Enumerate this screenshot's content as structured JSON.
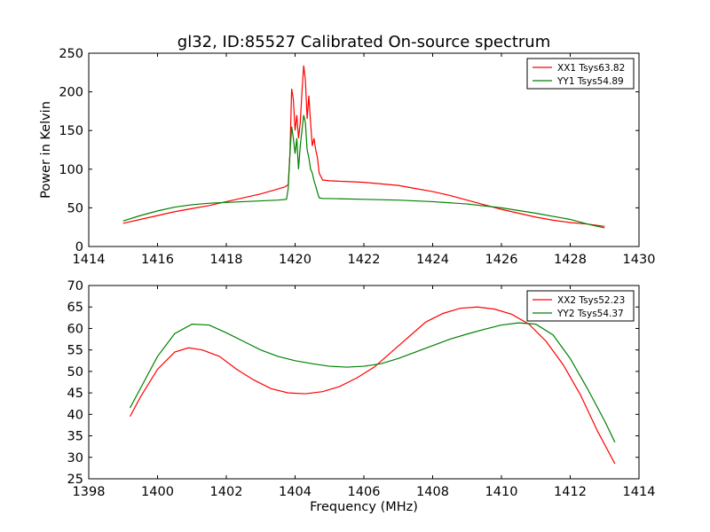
{
  "title": "gl32, ID:85527 Calibrated On-source spectrum",
  "chart_data": [
    {
      "type": "line",
      "title": "gl32, ID:85527 Calibrated On-source spectrum",
      "xlabel": "",
      "ylabel": "Power in Kelvin",
      "xlim": [
        1414,
        1430
      ],
      "ylim": [
        0,
        250
      ],
      "xticks": [
        "1414",
        "1416",
        "1418",
        "1420",
        "1422",
        "1424",
        "1426",
        "1428",
        "1430"
      ],
      "yticks": [
        "0",
        "50",
        "100",
        "150",
        "200",
        "250"
      ],
      "grid": false,
      "legend_position": "top-right",
      "series": [
        {
          "name": "XX1 Tsys63.82",
          "color": "#ff0000",
          "points": [
            [
              1415.0,
              30
            ],
            [
              1415.5,
              35
            ],
            [
              1416.0,
              40
            ],
            [
              1416.5,
              45
            ],
            [
              1417.0,
              49
            ],
            [
              1417.5,
              53
            ],
            [
              1418.0,
              58
            ],
            [
              1418.5,
              63
            ],
            [
              1419.0,
              68
            ],
            [
              1419.4,
              73
            ],
            [
              1419.7,
              77
            ],
            [
              1419.8,
              80
            ],
            [
              1419.85,
              120
            ],
            [
              1419.9,
              204
            ],
            [
              1419.95,
              190
            ],
            [
              1420.0,
              150
            ],
            [
              1420.05,
              170
            ],
            [
              1420.1,
              140
            ],
            [
              1420.15,
              160
            ],
            [
              1420.2,
              200
            ],
            [
              1420.25,
              234
            ],
            [
              1420.3,
              215
            ],
            [
              1420.35,
              165
            ],
            [
              1420.4,
              195
            ],
            [
              1420.45,
              160
            ],
            [
              1420.5,
              130
            ],
            [
              1420.55,
              140
            ],
            [
              1420.6,
              125
            ],
            [
              1420.65,
              115
            ],
            [
              1420.7,
              95
            ],
            [
              1420.8,
              86
            ],
            [
              1421.0,
              85
            ],
            [
              1421.5,
              84
            ],
            [
              1422.0,
              83
            ],
            [
              1422.5,
              81
            ],
            [
              1423.0,
              79
            ],
            [
              1423.5,
              75
            ],
            [
              1424.0,
              71
            ],
            [
              1424.5,
              66
            ],
            [
              1425.0,
              60
            ],
            [
              1425.5,
              54
            ],
            [
              1426.0,
              48
            ],
            [
              1426.5,
              43
            ],
            [
              1427.0,
              38
            ],
            [
              1427.5,
              34
            ],
            [
              1428.0,
              31
            ],
            [
              1428.5,
              29
            ],
            [
              1429.0,
              26
            ]
          ]
        },
        {
          "name": "YY1 Tsys54.89",
          "color": "#008000",
          "points": [
            [
              1415.0,
              33
            ],
            [
              1415.5,
              40
            ],
            [
              1416.0,
              46
            ],
            [
              1416.5,
              51
            ],
            [
              1417.0,
              54
            ],
            [
              1417.5,
              56
            ],
            [
              1418.0,
              57
            ],
            [
              1418.5,
              58
            ],
            [
              1419.0,
              59
            ],
            [
              1419.5,
              60
            ],
            [
              1419.75,
              61
            ],
            [
              1419.8,
              75
            ],
            [
              1419.85,
              120
            ],
            [
              1419.9,
              155
            ],
            [
              1419.95,
              140
            ],
            [
              1420.0,
              120
            ],
            [
              1420.05,
              140
            ],
            [
              1420.1,
              100
            ],
            [
              1420.15,
              130
            ],
            [
              1420.2,
              150
            ],
            [
              1420.25,
              170
            ],
            [
              1420.3,
              160
            ],
            [
              1420.35,
              125
            ],
            [
              1420.4,
              115
            ],
            [
              1420.45,
              100
            ],
            [
              1420.5,
              95
            ],
            [
              1420.55,
              85
            ],
            [
              1420.6,
              78
            ],
            [
              1420.65,
              70
            ],
            [
              1420.7,
              63
            ],
            [
              1420.8,
              62
            ],
            [
              1421.0,
              62
            ],
            [
              1422.0,
              61
            ],
            [
              1423.0,
              60
            ],
            [
              1424.0,
              58
            ],
            [
              1425.0,
              55
            ],
            [
              1426.0,
              50
            ],
            [
              1427.0,
              43
            ],
            [
              1428.0,
              35
            ],
            [
              1428.5,
              29
            ],
            [
              1429.0,
              24
            ]
          ]
        }
      ]
    },
    {
      "type": "line",
      "title": "",
      "xlabel": "Frequency (MHz)",
      "ylabel": "",
      "xlim": [
        1398,
        1414
      ],
      "ylim": [
        25,
        70
      ],
      "xticks": [
        "1398",
        "1400",
        "1402",
        "1404",
        "1406",
        "1408",
        "1410",
        "1412",
        "1414"
      ],
      "yticks": [
        "25",
        "30",
        "35",
        "40",
        "45",
        "50",
        "55",
        "60",
        "65",
        "70"
      ],
      "grid": false,
      "legend_position": "top-right",
      "series": [
        {
          "name": "XX2 Tsys52.23",
          "color": "#ff0000",
          "points": [
            [
              1399.2,
              39.5
            ],
            [
              1399.5,
              44
            ],
            [
              1400.0,
              50.5
            ],
            [
              1400.5,
              54.5
            ],
            [
              1400.9,
              55.5
            ],
            [
              1401.3,
              55
            ],
            [
              1401.8,
              53.5
            ],
            [
              1402.3,
              50.5
            ],
            [
              1402.8,
              48
            ],
            [
              1403.3,
              46
            ],
            [
              1403.8,
              45
            ],
            [
              1404.3,
              44.8
            ],
            [
              1404.8,
              45.3
            ],
            [
              1405.3,
              46.5
            ],
            [
              1405.8,
              48.5
            ],
            [
              1406.3,
              51
            ],
            [
              1406.8,
              54.5
            ],
            [
              1407.3,
              58
            ],
            [
              1407.8,
              61.5
            ],
            [
              1408.3,
              63.5
            ],
            [
              1408.8,
              64.7
            ],
            [
              1409.3,
              65
            ],
            [
              1409.8,
              64.5
            ],
            [
              1410.3,
              63.3
            ],
            [
              1410.8,
              61
            ],
            [
              1411.3,
              57
            ],
            [
              1411.8,
              51.5
            ],
            [
              1412.3,
              44.5
            ],
            [
              1412.8,
              36
            ],
            [
              1413.3,
              28.5
            ]
          ]
        },
        {
          "name": "YY2 Tsys54.37",
          "color": "#008000",
          "points": [
            [
              1399.2,
              41.5
            ],
            [
              1399.5,
              46
            ],
            [
              1400.0,
              53.5
            ],
            [
              1400.5,
              58.8
            ],
            [
              1401.0,
              61
            ],
            [
              1401.5,
              60.8
            ],
            [
              1402.0,
              59
            ],
            [
              1402.5,
              57
            ],
            [
              1403.0,
              55
            ],
            [
              1403.5,
              53.5
            ],
            [
              1404.0,
              52.5
            ],
            [
              1404.5,
              51.8
            ],
            [
              1405.0,
              51.2
            ],
            [
              1405.5,
              51
            ],
            [
              1406.0,
              51.2
            ],
            [
              1406.5,
              51.8
            ],
            [
              1407.0,
              53
            ],
            [
              1407.5,
              54.5
            ],
            [
              1408.0,
              56
            ],
            [
              1408.5,
              57.5
            ],
            [
              1409.0,
              58.7
            ],
            [
              1409.5,
              59.8
            ],
            [
              1410.0,
              60.8
            ],
            [
              1410.5,
              61.3
            ],
            [
              1411.0,
              61
            ],
            [
              1411.5,
              58.5
            ],
            [
              1412.0,
              53
            ],
            [
              1412.5,
              46
            ],
            [
              1413.0,
              38.5
            ],
            [
              1413.3,
              33.5
            ]
          ]
        }
      ]
    }
  ]
}
